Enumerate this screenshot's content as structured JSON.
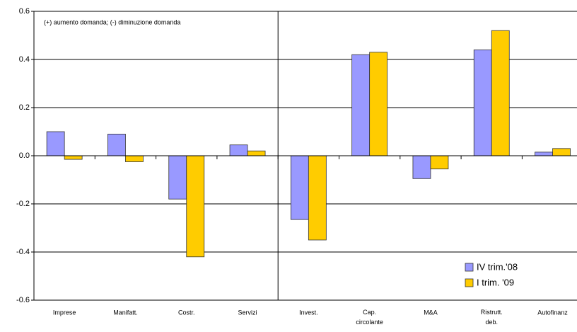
{
  "chart_data": {
    "type": "bar",
    "annotation": "(+) aumento domanda; (-) diminuzione domanda",
    "categories": [
      "Imprese",
      "Manifatt.",
      "Costr.",
      "Servizi",
      "Invest.",
      "Cap.\ncircolante",
      "M&A",
      "Ristrutt.\ndeb.",
      "Autofinanz"
    ],
    "series": [
      {
        "name": "IV trim.'08",
        "color": "#9999ff",
        "values": [
          0.1,
          0.09,
          -0.18,
          0.045,
          -0.265,
          0.42,
          -0.095,
          0.44,
          0.015
        ]
      },
      {
        "name": "I trim. '09",
        "color": "#ffcc00",
        "values": [
          -0.015,
          -0.025,
          -0.42,
          0.02,
          -0.35,
          0.43,
          -0.055,
          0.52,
          0.03
        ]
      }
    ],
    "ylim": [
      -0.6,
      0.6
    ],
    "yticks": [
      -0.6,
      -0.4,
      -0.2,
      {
        "value": 0,
        "label": "0.0"
      },
      0.2,
      0.4,
      0.6
    ],
    "grid": true,
    "legend": "lower right"
  }
}
